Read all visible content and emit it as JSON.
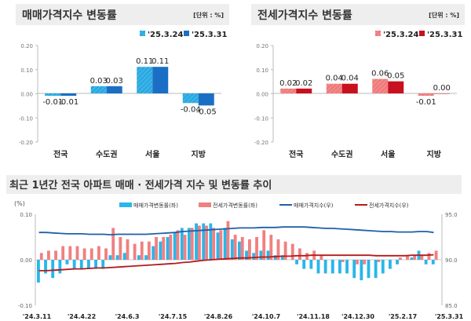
{
  "chart_data": [
    {
      "type": "bar",
      "title": "매매가격지수 변동률",
      "unit_label": "[단위 : %]",
      "categories": [
        "전국",
        "수도권",
        "서울",
        "지방"
      ],
      "series": [
        {
          "name": "'25.3.24",
          "values": [
            -0.01,
            0.03,
            0.11,
            -0.04
          ],
          "color": "#29a9e1"
        },
        {
          "name": "'25.3.31",
          "values": [
            -0.01,
            0.03,
            0.11,
            -0.05
          ],
          "color": "#1a6fc4"
        }
      ],
      "ylim": [
        -0.2,
        0.2
      ],
      "yticks": [
        "0.20",
        "0.10",
        "0.00",
        "-0.10",
        "-0.20"
      ],
      "legend": "top-right"
    },
    {
      "type": "bar",
      "title": "전세가격지수 변동률",
      "unit_label": "[단위 : %]",
      "categories": [
        "전국",
        "수도권",
        "서울",
        "지방"
      ],
      "series": [
        {
          "name": "'25.3.24",
          "values": [
            0.02,
            0.04,
            0.06,
            -0.01
          ],
          "color": "#f07a7a"
        },
        {
          "name": "'25.3.31",
          "values": [
            0.02,
            0.04,
            0.05,
            0.0
          ],
          "color": "#c8101e"
        }
      ],
      "ylim": [
        -0.2,
        0.2
      ],
      "yticks": [
        "0.20",
        "0.10",
        "0.00",
        "-0.10",
        "-0.20"
      ],
      "legend": "top-right"
    },
    {
      "type": "bar+line",
      "title": "최근 1년간 전국 아파트 매매 · 전세가격 지수 및 변동률 추이",
      "ylabel_left": "(%)",
      "ylim_left": [
        -0.1,
        0.1
      ],
      "yticks_left": [
        "0.10",
        "0.00",
        "-0.10"
      ],
      "ylim_right": [
        85.0,
        95.0
      ],
      "yticks_right": [
        "95.0",
        "90.0",
        "85.0"
      ],
      "xtick_labels": [
        "'24.3.11",
        "'24.4.22",
        "'24.6.3",
        "'24.7.15",
        "'24.8.26",
        "'24.10.7",
        "'24.11.18",
        "'24.12.30",
        "'25.2.17",
        "'25.3.31"
      ],
      "legend": "top",
      "series": [
        {
          "name": "매매가격변동률(좌)",
          "kind": "bar",
          "color": "#29b6ea",
          "values": [
            -0.05,
            -0.03,
            -0.04,
            -0.03,
            -0.01,
            -0.02,
            -0.02,
            -0.02,
            -0.02,
            -0.02,
            0.01,
            0.01,
            0.015,
            0.0,
            0.01,
            0.01,
            0.03,
            0.04,
            0.05,
            0.06,
            0.07,
            0.07,
            0.08,
            0.08,
            0.08,
            0.06,
            0.07,
            0.045,
            0.04,
            0.02,
            0.015,
            0.02,
            0.02,
            0.01,
            0.01,
            0.0,
            -0.01,
            -0.02,
            -0.02,
            -0.03,
            -0.03,
            -0.03,
            -0.03,
            -0.03,
            -0.04,
            -0.045,
            -0.04,
            -0.04,
            -0.03,
            -0.02,
            -0.01,
            0.0,
            0.005,
            0.02,
            -0.01,
            -0.01
          ]
        },
        {
          "name": "전세가격변동률(좌)",
          "kind": "bar",
          "color": "#f08080",
          "values": [
            0.015,
            0.02,
            0.02,
            0.03,
            0.03,
            0.03,
            0.025,
            0.025,
            0.03,
            0.025,
            0.07,
            0.05,
            0.045,
            0.035,
            0.04,
            0.04,
            0.05,
            0.05,
            0.055,
            0.065,
            0.055,
            0.07,
            0.075,
            0.075,
            0.07,
            0.065,
            0.085,
            0.055,
            0.05,
            0.045,
            0.05,
            0.065,
            0.055,
            0.045,
            0.04,
            0.035,
            0.025,
            0.015,
            0.02,
            0.01,
            0.0,
            0.0,
            -0.005,
            0.0,
            -0.01,
            -0.01,
            0.0,
            -0.005,
            0.0,
            0.0,
            0.005,
            0.01,
            0.01,
            0.01,
            0.015,
            0.02
          ]
        },
        {
          "name": "매매가격지수(우)",
          "kind": "line",
          "color": "#1f5fa8",
          "values": [
            93.0,
            93.0,
            92.95,
            92.9,
            92.85,
            92.85,
            92.85,
            92.8,
            92.8,
            92.8,
            92.75,
            92.8,
            92.8,
            92.8,
            92.8,
            92.8,
            92.85,
            92.9,
            92.95,
            93.0,
            93.1,
            93.15,
            93.2,
            93.25,
            93.3,
            93.35,
            93.4,
            93.45,
            93.5,
            93.5,
            93.5,
            93.55,
            93.55,
            93.55,
            93.6,
            93.6,
            93.6,
            93.6,
            93.55,
            93.5,
            93.45,
            93.45,
            93.4,
            93.35,
            93.3,
            93.25,
            93.2,
            93.15,
            93.1,
            93.1,
            93.05,
            93.05,
            93.05,
            93.1,
            93.1,
            93.0
          ]
        },
        {
          "name": "전세가격지수(우)",
          "kind": "line",
          "color": "#b31b1b",
          "values": [
            88.8,
            88.8,
            88.85,
            88.9,
            88.95,
            89.0,
            89.0,
            89.05,
            89.1,
            89.1,
            89.15,
            89.2,
            89.25,
            89.3,
            89.35,
            89.4,
            89.45,
            89.5,
            89.55,
            89.6,
            89.7,
            89.75,
            89.85,
            89.95,
            90.0,
            90.05,
            90.1,
            90.15,
            90.2,
            90.2,
            90.25,
            90.3,
            90.3,
            90.35,
            90.4,
            90.4,
            90.45,
            90.45,
            90.5,
            90.5,
            90.5,
            90.5,
            90.5,
            90.5,
            90.5,
            90.5,
            90.5,
            90.45,
            90.45,
            90.45,
            90.45,
            90.45,
            90.5,
            90.5,
            90.5,
            90.55
          ]
        }
      ]
    }
  ]
}
